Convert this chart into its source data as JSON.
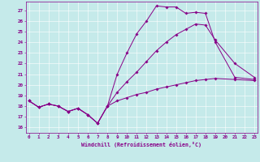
{
  "xlabel": "Windchill (Refroidissement éolien,°C)",
  "bg_color": "#c5eaea",
  "line_color": "#880088",
  "grid_color": "#ffffff",
  "xlim": [
    -0.3,
    23.3
  ],
  "ylim": [
    15.5,
    27.8
  ],
  "yticks": [
    16,
    17,
    18,
    19,
    20,
    21,
    22,
    23,
    24,
    25,
    26,
    27
  ],
  "xticks": [
    0,
    1,
    2,
    3,
    4,
    5,
    6,
    7,
    8,
    9,
    10,
    11,
    12,
    13,
    14,
    15,
    16,
    17,
    18,
    19,
    20,
    21,
    22,
    23
  ],
  "x_values": [
    0,
    1,
    2,
    3,
    4,
    5,
    6,
    7,
    8,
    9,
    10,
    11,
    12,
    13,
    14,
    15,
    16,
    17,
    18,
    19,
    21,
    23
  ],
  "series1": [
    18.5,
    17.9,
    18.2,
    18.0,
    17.5,
    17.8,
    17.2,
    16.4,
    18.0,
    21.0,
    23.0,
    24.8,
    26.0,
    27.4,
    27.3,
    27.3,
    26.7,
    26.8,
    26.7,
    24.0,
    20.7,
    20.5
  ],
  "series2": [
    18.5,
    17.9,
    18.2,
    18.0,
    17.5,
    17.8,
    17.2,
    16.4,
    18.0,
    19.3,
    20.3,
    21.2,
    22.2,
    23.2,
    24.0,
    24.7,
    25.2,
    25.7,
    25.6,
    24.2,
    22.0,
    20.7
  ],
  "series3": [
    18.5,
    17.9,
    18.2,
    18.0,
    17.5,
    17.8,
    17.2,
    16.4,
    18.0,
    18.5,
    18.8,
    19.1,
    19.3,
    19.6,
    19.8,
    20.0,
    20.2,
    20.4,
    20.5,
    20.6,
    20.5,
    20.4
  ]
}
